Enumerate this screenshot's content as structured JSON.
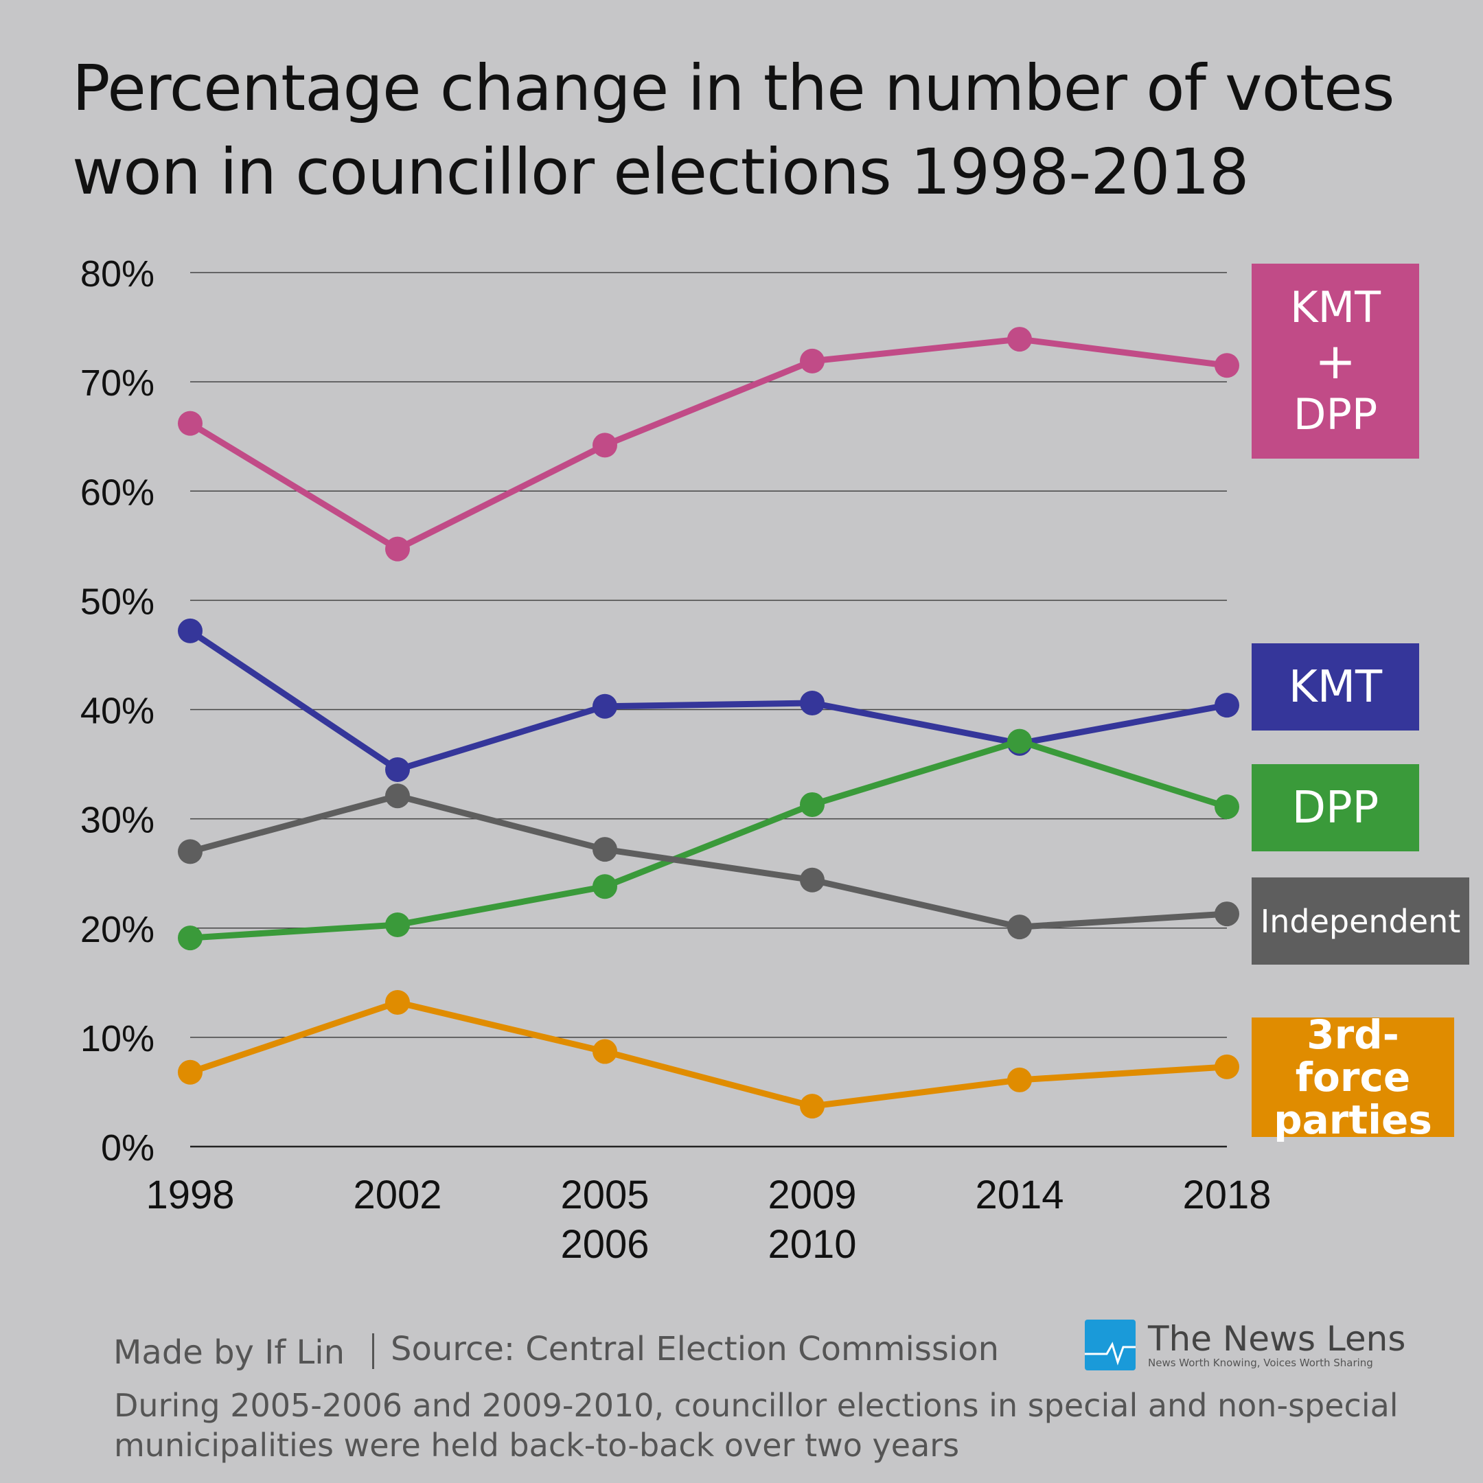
{
  "chart_data": {
    "type": "line",
    "title": "Percentage change in the number of votes won in councillor elections 1998-2018",
    "title_lines": [
      "Percentage change in the number of votes",
      "won in councillor elections 1998-2018"
    ],
    "categories": [
      "1998",
      "2002",
      "2005\n2006",
      "2009\n2010",
      "2014",
      "2018"
    ],
    "category_lines": [
      [
        "1998"
      ],
      [
        "2002"
      ],
      [
        "2005",
        "2006"
      ],
      [
        "2009",
        "2010"
      ],
      [
        "2014"
      ],
      [
        "2018"
      ]
    ],
    "ylim": [
      0,
      80
    ],
    "yticks": [
      "0%",
      "10%",
      "20%",
      "30%",
      "40%",
      "50%",
      "60%",
      "70%",
      "80%"
    ],
    "grid": true,
    "legend_placement": "right",
    "series": [
      {
        "name": "KMT + DPP",
        "label_lines": [
          "KMT",
          "+",
          "DPP"
        ],
        "color": "#c14b87",
        "values": [
          66.2,
          54.7,
          64.2,
          71.9,
          73.9,
          71.5
        ]
      },
      {
        "name": "KMT",
        "label_lines": [
          "KMT"
        ],
        "color": "#35369a",
        "values": [
          47.2,
          34.5,
          40.3,
          40.6,
          36.9,
          40.4
        ]
      },
      {
        "name": "DPP",
        "label_lines": [
          "DPP"
        ],
        "color": "#3a9a3a",
        "values": [
          19.1,
          20.3,
          23.8,
          31.3,
          37.1,
          31.1
        ]
      },
      {
        "name": "Independent",
        "label_lines": [
          "Independent"
        ],
        "color": "#5e5e5e",
        "values": [
          27.0,
          32.1,
          27.2,
          24.4,
          20.1,
          21.3
        ]
      },
      {
        "name": "3rd-force parties",
        "label_lines": [
          "3rd-force",
          "parties"
        ],
        "color": "#e08c00",
        "values": [
          6.8,
          13.2,
          8.7,
          3.7,
          6.1,
          7.3
        ]
      }
    ]
  },
  "footer": {
    "credit": "Made by If Lin",
    "source": "Source: Central Election Commission",
    "note": "During 2005-2006 and 2009-2010, councillor elections in special and non-special municipalities were held back-to-back over two years"
  },
  "logo": {
    "name": "The News Lens",
    "tagline": "News Worth Knowing, Voices Worth Sharing",
    "color": "#1a9ad9"
  }
}
